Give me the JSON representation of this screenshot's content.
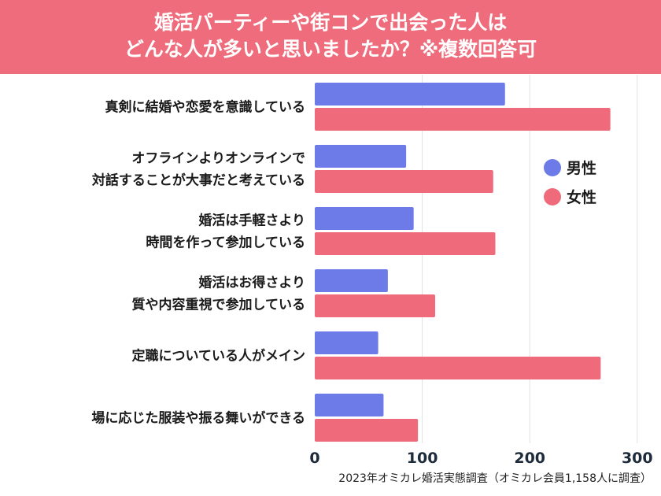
{
  "title_lines": [
    "婚活パーティーや街コンで出会った人は",
    "どんな人が多いと思いましたか？※複数回答可"
  ],
  "source": "2023年オミカレ婚活実態調査（オミカレ会員1,158人に調査）",
  "chart_data": {
    "type": "bar",
    "orientation": "horizontal",
    "title": "婚活パーティーや街コンで出会った人はどんな人が多いと思いましたか？※複数回答可",
    "categories": [
      [
        "真剣に結婚や恋愛を意識している"
      ],
      [
        "オフラインよりオンラインで",
        "対話することが大事だと考えている"
      ],
      [
        "婚活は手軽さより",
        "時間を作って参加している"
      ],
      [
        "婚活はお得さより",
        "質や内容重視で参加している"
      ],
      [
        "定職についている人がメイン"
      ],
      [
        "場に応じた服装や振る舞いができる"
      ]
    ],
    "series": [
      {
        "name": "男性",
        "color": "#6d7be9",
        "values": [
          177,
          85,
          92,
          68,
          59,
          64
        ]
      },
      {
        "name": "女性",
        "color": "#ef6b7b",
        "values": [
          275,
          166,
          168,
          112,
          266,
          96
        ]
      }
    ],
    "xlim": [
      0,
      300
    ],
    "xticks": [
      "0",
      "100",
      "200",
      "300"
    ],
    "grid": true,
    "legend_position": "right"
  }
}
